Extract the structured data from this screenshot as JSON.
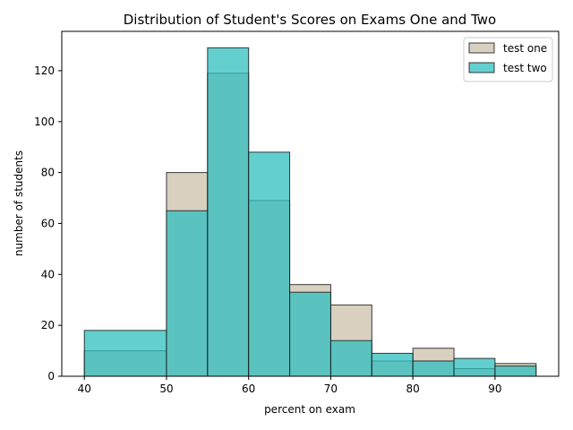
{
  "chart_data": {
    "type": "bar",
    "title": "Distribution of Student's Scores on Exams One and Two",
    "xlabel": "percent on exam",
    "ylabel": "number of students",
    "xlim": [
      37.25,
      97.75
    ],
    "ylim": [
      0,
      135.45
    ],
    "x_ticks": [
      40,
      50,
      60,
      70,
      80,
      90
    ],
    "y_ticks": [
      0,
      20,
      40,
      60,
      80,
      100,
      120
    ],
    "grid": false,
    "legend": {
      "placement": "top-right"
    },
    "bin_edges": [
      40,
      50,
      55,
      60,
      65,
      70,
      75,
      80,
      85,
      90,
      95
    ],
    "series": [
      {
        "name": "test one",
        "color": "#d8cdbd",
        "values": [
          10,
          80,
          119,
          69,
          36,
          28,
          6,
          11,
          3,
          5
        ]
      },
      {
        "name": "test two",
        "color": "#2fbfbf",
        "values": [
          18,
          65,
          129,
          88,
          33,
          14,
          9,
          6,
          7,
          4
        ]
      }
    ]
  }
}
